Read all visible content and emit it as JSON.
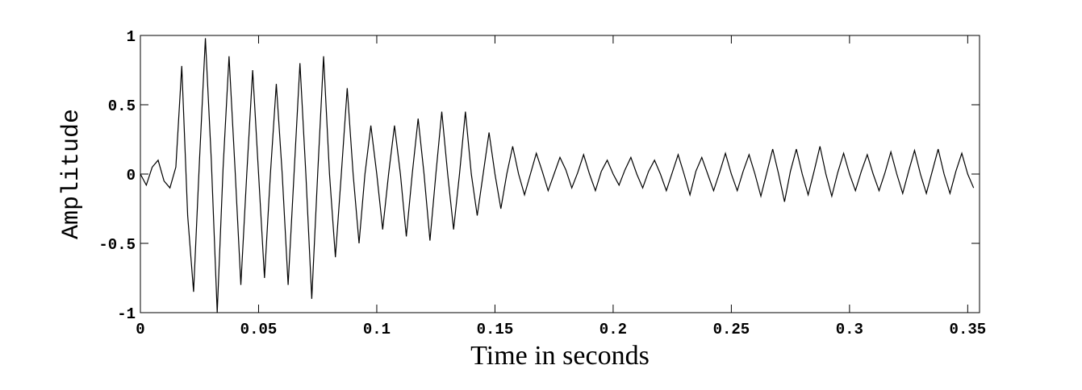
{
  "chart_data": {
    "type": "line",
    "xlabel": "Time in seconds",
    "ylabel": "Amplitude",
    "xlim": [
      0,
      0.355
    ],
    "ylim": [
      -1,
      1
    ],
    "xticks": [
      0,
      0.05,
      0.1,
      0.15,
      0.2,
      0.25,
      0.3,
      0.35
    ],
    "yticks": [
      -1,
      -0.5,
      0,
      0.5,
      1
    ],
    "grid": false,
    "series": [
      {
        "color": "#000000",
        "x": [
          0,
          0.0025,
          0.005,
          0.0075,
          0.01,
          0.0125,
          0.015,
          0.0175,
          0.02,
          0.0225,
          0.025,
          0.0275,
          0.03,
          0.0325,
          0.035,
          0.0375,
          0.04,
          0.0425,
          0.045,
          0.0475,
          0.05,
          0.0525,
          0.055,
          0.0575,
          0.06,
          0.0625,
          0.065,
          0.0675,
          0.07,
          0.0725,
          0.075,
          0.0775,
          0.08,
          0.0825,
          0.085,
          0.0875,
          0.09,
          0.0925,
          0.095,
          0.0975,
          0.1,
          0.1025,
          0.105,
          0.1075,
          0.11,
          0.1125,
          0.115,
          0.1175,
          0.12,
          0.1225,
          0.125,
          0.1275,
          0.13,
          0.1325,
          0.135,
          0.1375,
          0.14,
          0.1425,
          0.145,
          0.1475,
          0.15,
          0.1525,
          0.155,
          0.1575,
          0.16,
          0.1625,
          0.165,
          0.1675,
          0.17,
          0.1725,
          0.175,
          0.1775,
          0.18,
          0.1825,
          0.185,
          0.1875,
          0.19,
          0.1925,
          0.195,
          0.1975,
          0.2,
          0.2025,
          0.205,
          0.2075,
          0.21,
          0.2125,
          0.215,
          0.2175,
          0.22,
          0.2225,
          0.225,
          0.2275,
          0.23,
          0.2325,
          0.235,
          0.2375,
          0.24,
          0.2425,
          0.245,
          0.2475,
          0.25,
          0.2525,
          0.255,
          0.2575,
          0.26,
          0.2625,
          0.265,
          0.2675,
          0.27,
          0.2725,
          0.275,
          0.2775,
          0.28,
          0.2825,
          0.285,
          0.2875,
          0.29,
          0.2925,
          0.295,
          0.2975,
          0.3,
          0.3025,
          0.305,
          0.3075,
          0.31,
          0.3125,
          0.315,
          0.3175,
          0.32,
          0.3225,
          0.325,
          0.3275,
          0.33,
          0.3325,
          0.335,
          0.3375,
          0.34,
          0.3425,
          0.345,
          0.3475,
          0.35,
          0.3525
        ],
        "values": [
          0,
          -0.08,
          0.05,
          0.1,
          -0.05,
          -0.1,
          0.05,
          0.78,
          -0.3,
          -0.85,
          0.1,
          0.98,
          0.1,
          -1,
          0.05,
          0.85,
          0.05,
          -0.8,
          0,
          0.75,
          0,
          -0.75,
          0,
          0.65,
          0,
          -0.8,
          0,
          0.8,
          0,
          -0.9,
          0,
          0.85,
          0,
          -0.6,
          0,
          0.62,
          0,
          -0.5,
          0,
          0.35,
          0,
          -0.4,
          0,
          0.35,
          0,
          -0.45,
          0,
          0.4,
          0,
          -0.48,
          0,
          0.45,
          0,
          -0.4,
          0,
          0.45,
          0,
          -0.3,
          0,
          0.3,
          0,
          -0.25,
          0,
          0.2,
          0,
          -0.15,
          0,
          0.15,
          0.02,
          -0.12,
          0,
          0.12,
          0.03,
          -0.1,
          0.01,
          0.14,
          0,
          -0.12,
          0.02,
          0.1,
          0,
          -0.08,
          0.03,
          0.12,
          0,
          -0.1,
          0.02,
          0.1,
          0,
          -0.12,
          0.01,
          0.14,
          0,
          -0.15,
          0.02,
          0.12,
          0,
          -0.12,
          0.01,
          0.15,
          0,
          -0.12,
          0.02,
          0.14,
          0,
          -0.16,
          0.01,
          0.18,
          0,
          -0.2,
          0.02,
          0.18,
          0,
          -0.15,
          0.02,
          0.2,
          0,
          -0.16,
          0.01,
          0.15,
          0,
          -0.12,
          0.02,
          0.14,
          0,
          -0.12,
          0.01,
          0.16,
          0,
          -0.14,
          0.02,
          0.17,
          0,
          -0.14,
          0.02,
          0.18,
          0,
          -0.14,
          0.02,
          0.15,
          0,
          -0.1
        ]
      }
    ]
  }
}
